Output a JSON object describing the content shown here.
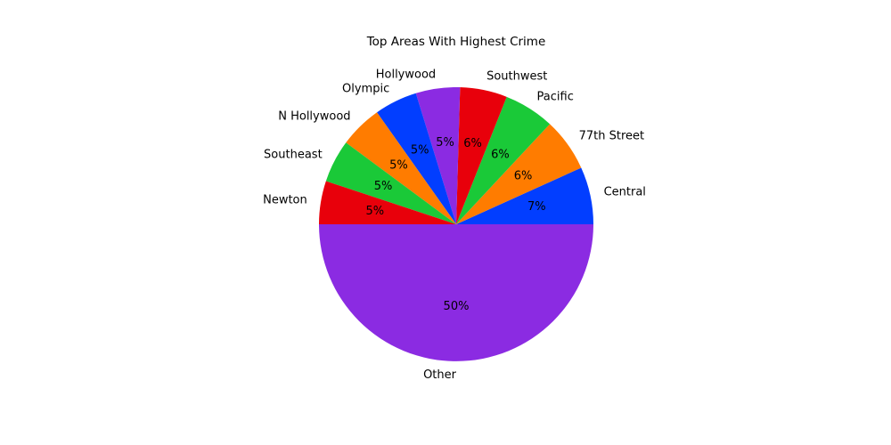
{
  "chart_data": {
    "type": "pie",
    "title": "Top Areas With Highest Crime",
    "autopct_format": "{v}%",
    "start_angle_deg": 0,
    "direction": "counterclockwise",
    "slices": [
      {
        "label": "Central",
        "value": 6.77,
        "pct_label": "7%",
        "color": "#023eff"
      },
      {
        "label": "77th Street",
        "value": 6.28,
        "pct_label": "6%",
        "color": "#ff7c00"
      },
      {
        "label": "Pacific",
        "value": 5.95,
        "pct_label": "6%",
        "color": "#1ac938"
      },
      {
        "label": "Southwest",
        "value": 5.55,
        "pct_label": "6%",
        "color": "#e8000b"
      },
      {
        "label": "Hollywood",
        "value": 5.2,
        "pct_label": "5%",
        "color": "#8b2be2"
      },
      {
        "label": "Olympic",
        "value": 5.05,
        "pct_label": "5%",
        "color": "#023eff"
      },
      {
        "label": "N Hollywood",
        "value": 5.05,
        "pct_label": "5%",
        "color": "#ff7c00"
      },
      {
        "label": "Southeast",
        "value": 5.05,
        "pct_label": "5%",
        "color": "#1ac938"
      },
      {
        "label": "Newton",
        "value": 5.1,
        "pct_label": "5%",
        "color": "#e8000b"
      },
      {
        "label": "Other",
        "value": 50.0,
        "pct_label": "50%",
        "color": "#8b2be2"
      }
    ]
  }
}
